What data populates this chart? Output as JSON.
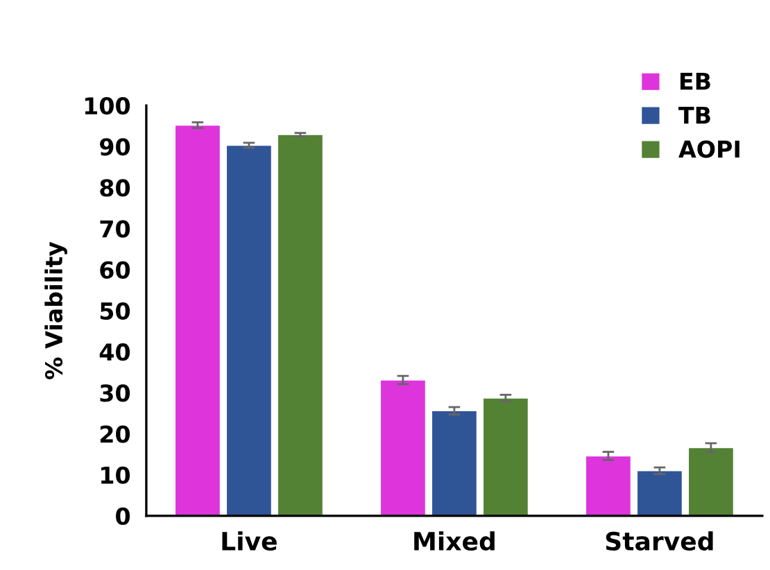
{
  "chart_data": {
    "type": "bar",
    "ylabel": "% Viability",
    "categories": [
      "Live",
      "Mixed",
      "Starved"
    ],
    "series": [
      {
        "name": "EB",
        "color": "#dd35db",
        "values": [
          95.2,
          33.1,
          14.6
        ],
        "errors": [
          0.7,
          1.0,
          1.0
        ]
      },
      {
        "name": "TB",
        "color": "#2f5597",
        "values": [
          90.3,
          25.6,
          11.0
        ],
        "errors": [
          0.6,
          0.9,
          0.8
        ]
      },
      {
        "name": "AOPI",
        "color": "#548235",
        "values": [
          92.9,
          28.7,
          16.6
        ],
        "errors": [
          0.4,
          0.8,
          1.1
        ]
      }
    ],
    "ylim": [
      0,
      100
    ],
    "yticks": [
      0,
      10,
      20,
      30,
      40,
      50,
      60,
      70,
      80,
      90,
      100
    ],
    "grid": false,
    "legend": "top right"
  }
}
